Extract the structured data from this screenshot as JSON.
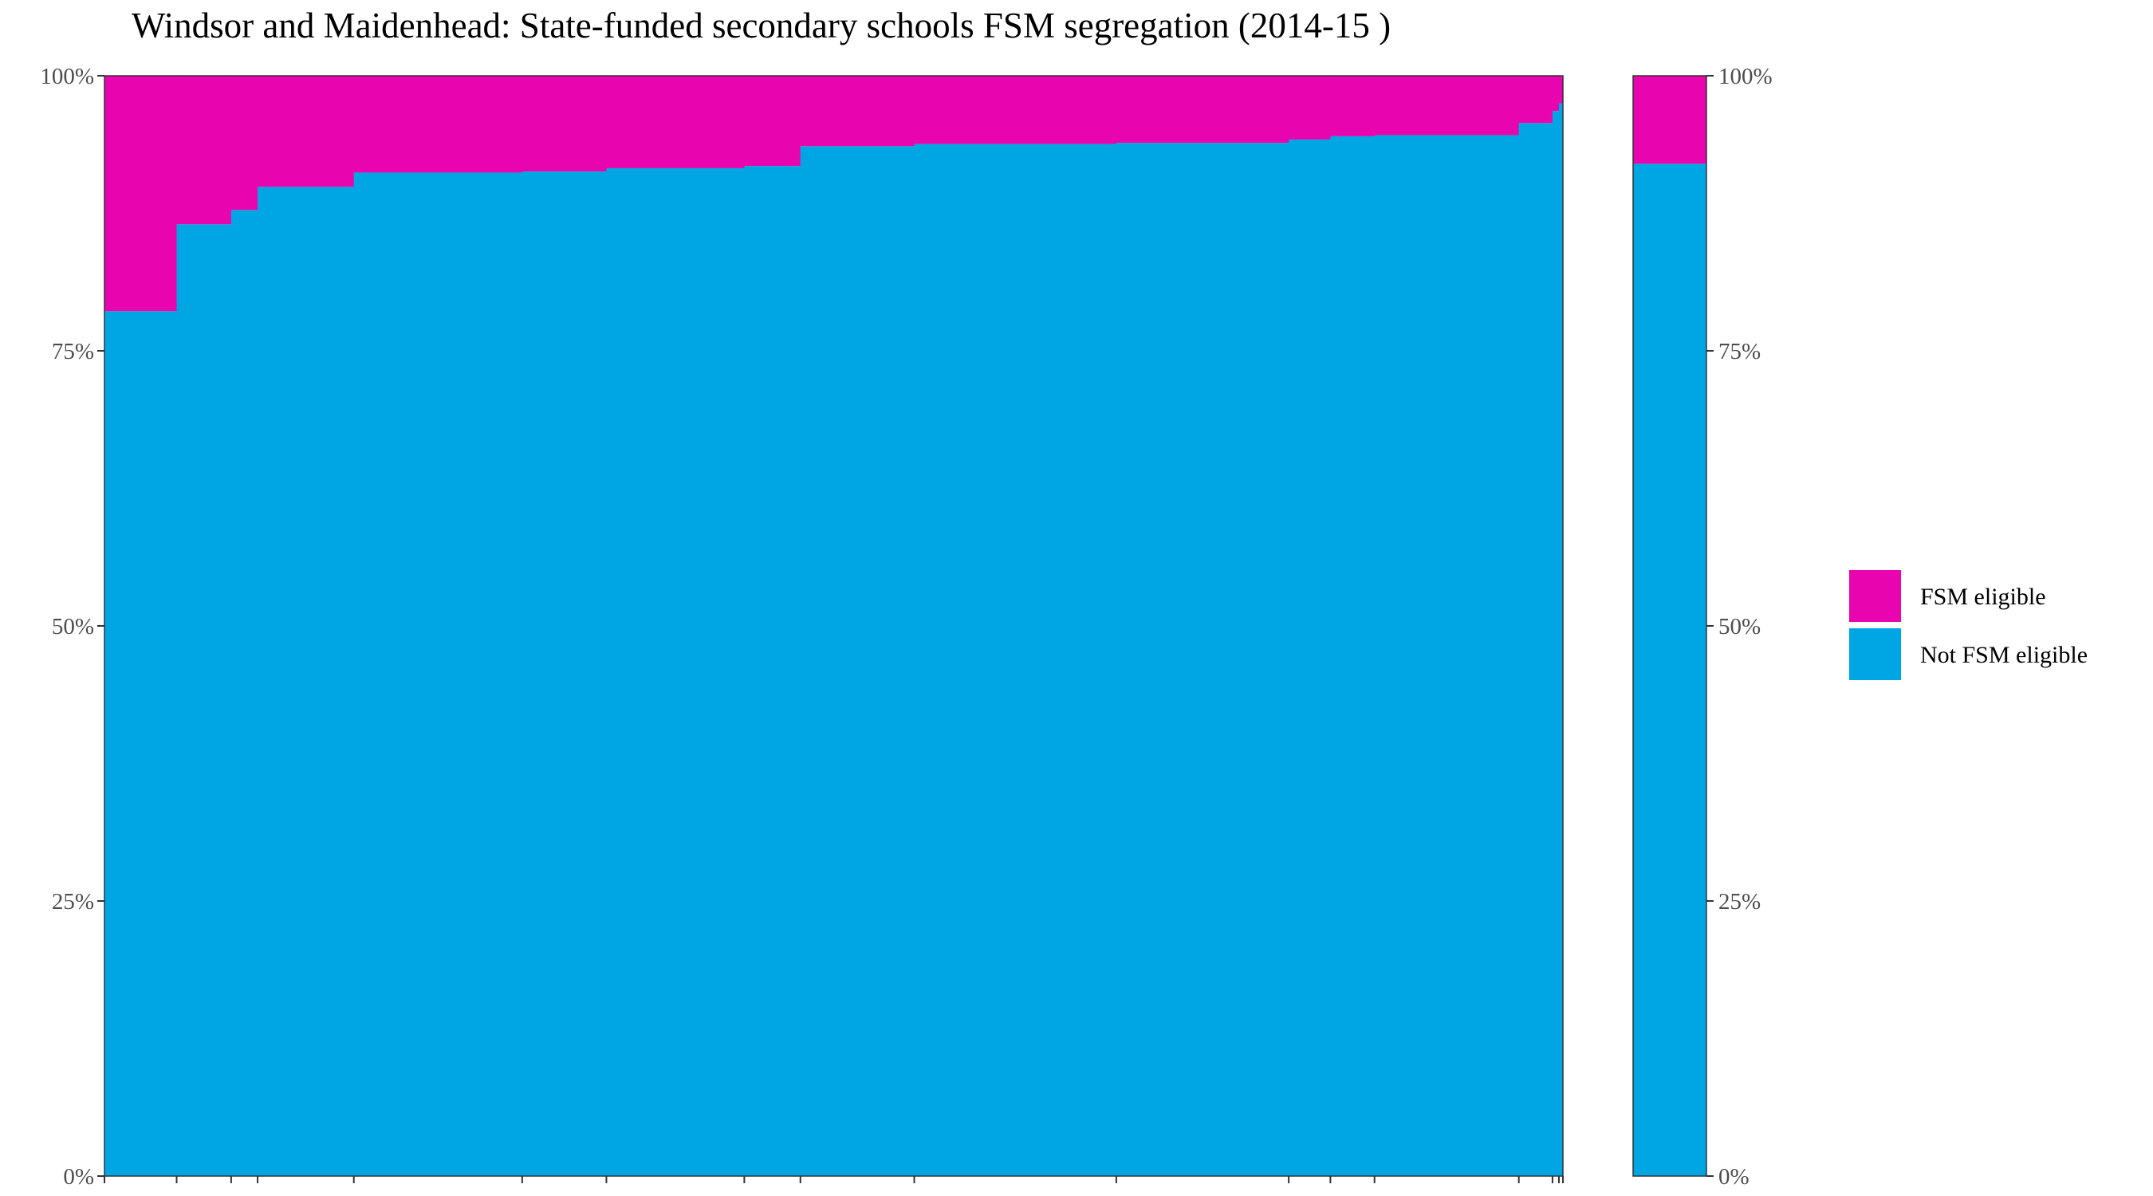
{
  "chart_data": {
    "type": "bar",
    "subtype": "stacked-100-variable-width",
    "title": "Windsor and Maidenhead: State-funded secondary schools FSM segregation (2014-15 )",
    "xlabel": "",
    "ylabel": "",
    "ylim": [
      0,
      1
    ],
    "y_ticks": [
      "0%",
      "25%",
      "50%",
      "75%",
      "100%"
    ],
    "y_axis_both_sides": true,
    "grid": false,
    "legend_position": "right",
    "colors": {
      "fsm_eligible": "#E805B0",
      "not_fsm_eligible": "#00A6E4"
    },
    "series": [
      {
        "name": "FSM eligible",
        "color": "#E805B0"
      },
      {
        "name": "Not FSM eligible",
        "color": "#00A6E4"
      }
    ],
    "schools": [
      {
        "pupils": 90,
        "not_fsm_share": 0.786
      },
      {
        "pupils": 68,
        "not_fsm_share": 0.865
      },
      {
        "pupils": 33,
        "not_fsm_share": 0.878
      },
      {
        "pupils": 120,
        "not_fsm_share": 0.899
      },
      {
        "pupils": 210,
        "not_fsm_share": 0.912
      },
      {
        "pupils": 105,
        "not_fsm_share": 0.913
      },
      {
        "pupils": 172,
        "not_fsm_share": 0.916
      },
      {
        "pupils": 70,
        "not_fsm_share": 0.918
      },
      {
        "pupils": 142,
        "not_fsm_share": 0.936
      },
      {
        "pupils": 252,
        "not_fsm_share": 0.938
      },
      {
        "pupils": 215,
        "not_fsm_share": 0.939
      },
      {
        "pupils": 52,
        "not_fsm_share": 0.942
      },
      {
        "pupils": 55,
        "not_fsm_share": 0.945
      },
      {
        "pupils": 180,
        "not_fsm_share": 0.946
      },
      {
        "pupils": 42,
        "not_fsm_share": 0.957
      },
      {
        "pupils": 8,
        "not_fsm_share": 0.968
      },
      {
        "pupils": 5,
        "not_fsm_share": 0.975
      }
    ],
    "overall": {
      "not_fsm_share": 0.92
    }
  },
  "legend": {
    "items": [
      {
        "label": "FSM eligible",
        "color": "#E805B0"
      },
      {
        "label": "Not FSM eligible",
        "color": "#00A6E4"
      }
    ]
  }
}
